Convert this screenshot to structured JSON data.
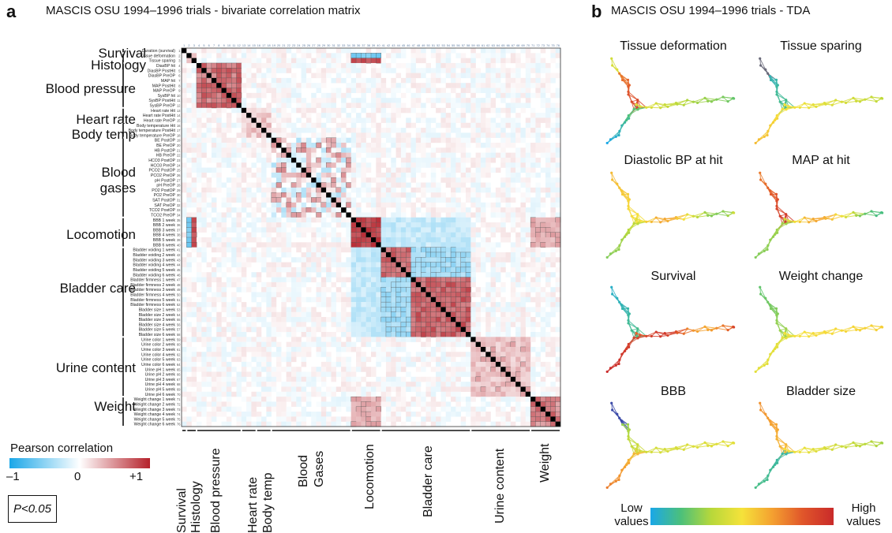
{
  "panel_a": {
    "letter": "a",
    "title": "MASCIS OSU 1994–1996 trials - bivariate correlation matrix",
    "group_labels": [
      "Survival",
      "Histology",
      "Blood pressure",
      "Heart rate",
      "Body temp",
      "Blood",
      "gases",
      "Locomotion",
      "Bladder care",
      "Urine content",
      "Weight"
    ],
    "bottom_labels": [
      "Survival",
      "Histology",
      "Blood pressure",
      "Heart rate",
      "Body temp",
      "Blood",
      "Gases",
      "Locomotion",
      "Bladder care",
      "Urine content",
      "Weight"
    ],
    "variables": [
      "Duration (survival)",
      "Tissue deformation",
      "Tissue sparing",
      "DiasBP hit",
      "DiasBP PostHit",
      "DiasBP PreOP",
      "MAP hit",
      "MAP PostHit",
      "MAP PreOP",
      "SysBP hit",
      "SysBP PostHit",
      "SysBP PreOP",
      "Heart rate Hit",
      "Heart rate PostHit",
      "Heart rate PreOP",
      "Body temperature Hit",
      "Body temperature PostHit",
      "Body temperature PreOP",
      "BE PostOP",
      "BE PreOP",
      "HB PostOP",
      "HB PreOP",
      "HCO3 PostOP",
      "HCO3 PreOP",
      "PCO2 PostOP",
      "PCO2 PreOP",
      "pH PostOP",
      "pH PreOP",
      "PO2 PostOP",
      "PO2 PreOP",
      "SAT PostOP",
      "SAT PreOP",
      "TCO2 PostOP",
      "TCO2 PreOP",
      "BBB 1 week",
      "BBB 2 week",
      "BBB 3 week",
      "BBB 4 week",
      "BBB 5 week",
      "BBB 6 week",
      "Bladder voiding 1 week",
      "Bladder voiding 2 week",
      "Bladder voiding 3 week",
      "Bladder voiding 4 week",
      "Bladder voiding 5 week",
      "Bladder voiding 6 week",
      "Bladder firmness 1 week",
      "Bladder firmness 2 week",
      "Bladder firmness 3 week",
      "Bladder firmness 4 week",
      "Bladder firmness 5 week",
      "Bladder firmness 6 week",
      "Bladder size 1 week",
      "Bladder size 2 week",
      "Bladder size 3 week",
      "Bladder size 4 week",
      "Bladder size 5 week",
      "Bladder size 6 week",
      "Urine color 1 week",
      "Urine color 2 week",
      "Urine color 3 week",
      "Urine color 4 week",
      "Urine color 5 week",
      "Urine color 6 week",
      "Urine pH 1 week",
      "Urine pH 2 week",
      "Urine pH 3 week",
      "Urine pH 4 week",
      "Urine pH 5 week",
      "Urine pH 6 week",
      "Weight change 1 week",
      "Weight change 2 week",
      "Weight change 3 week",
      "Weight change 4 week",
      "Weight change 5 week",
      "Weight change 6 week"
    ],
    "groups": [
      {
        "name": "Survival",
        "start": 1,
        "end": 1
      },
      {
        "name": "Histology",
        "start": 2,
        "end": 3
      },
      {
        "name": "Blood pressure",
        "start": 4,
        "end": 12
      },
      {
        "name": "Heart rate",
        "start": 13,
        "end": 15
      },
      {
        "name": "Body temp",
        "start": 16,
        "end": 18
      },
      {
        "name": "Blood gases",
        "start": 19,
        "end": 34
      },
      {
        "name": "Locomotion",
        "start": 35,
        "end": 40
      },
      {
        "name": "Bladder care",
        "start": 41,
        "end": 58
      },
      {
        "name": "Urine content",
        "start": 59,
        "end": 70
      },
      {
        "name": "Weight",
        "start": 71,
        "end": 76
      }
    ],
    "legend": {
      "title": "Pearson correlation",
      "min_label": "–1",
      "mid_label": "0",
      "max_label": "+1",
      "neg_color": "#1aa7e8",
      "zero_color": "#ffffff",
      "pos_color": "#b5212a",
      "significance_label": "P<0.05"
    }
  },
  "panel_b": {
    "letter": "b",
    "title": "MASCIS OSU 1994–1996 trials - TDA",
    "networks": [
      {
        "label": "Tissue deformation",
        "scheme": "deformation"
      },
      {
        "label": "Tissue sparing",
        "scheme": "sparing"
      },
      {
        "label": "Diastolic BP at hit",
        "scheme": "diasbp"
      },
      {
        "label": "MAP at hit",
        "scheme": "map"
      },
      {
        "label": "Survival",
        "scheme": "survival"
      },
      {
        "label": "Weight change",
        "scheme": "weight"
      },
      {
        "label": "BBB",
        "scheme": "bbb"
      },
      {
        "label": "Bladder size",
        "scheme": "bladder"
      }
    ],
    "colorbar": {
      "low_label": "Low values",
      "high_label": "High values",
      "colors": [
        "#1aa7e8",
        "#4cc07a",
        "#b8d83a",
        "#f5e23a",
        "#f4a030",
        "#e0552a",
        "#c92a2a"
      ]
    }
  }
}
